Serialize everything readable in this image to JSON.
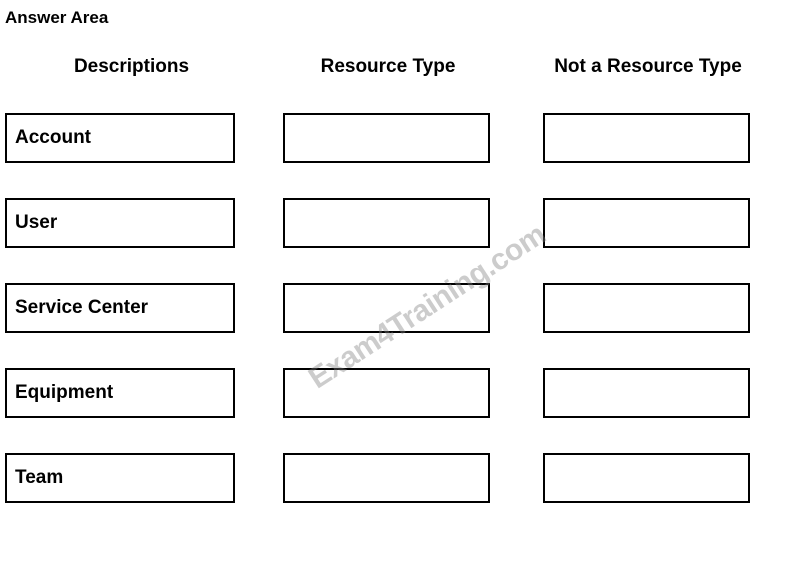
{
  "title": "Answer Area",
  "headers": {
    "descriptions": "Descriptions",
    "resource_type": "Resource Type",
    "not_resource_type": "Not a Resource Type"
  },
  "rows": [
    {
      "label": "Account"
    },
    {
      "label": "User"
    },
    {
      "label": "Service Center"
    },
    {
      "label": "Equipment"
    },
    {
      "label": "Team"
    }
  ],
  "watermark_text": "Exam4Training.com",
  "styling": {
    "background_color": "#ffffff",
    "border_color": "#000000",
    "border_width": 2,
    "text_color": "#000000",
    "title_fontsize": 17,
    "header_fontsize": 19,
    "label_fontsize": 19,
    "watermark_color": "rgba(128, 128, 128, 0.4)",
    "watermark_fontsize": 30,
    "watermark_rotation_deg": -33,
    "description_box_width": 230,
    "description_box_height": 50,
    "drop_box_width": 207,
    "drop_box_height": 50,
    "row_gap": 35
  }
}
